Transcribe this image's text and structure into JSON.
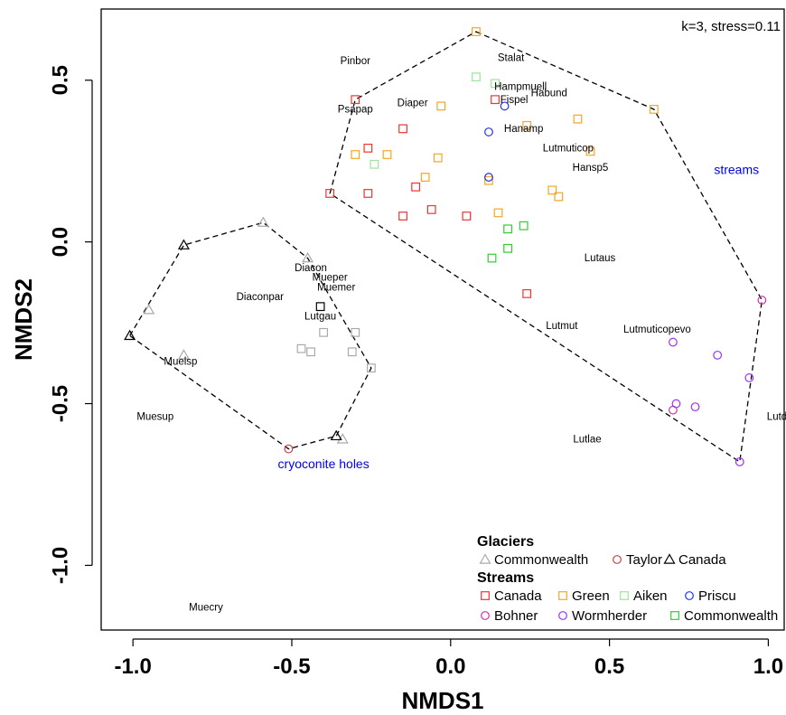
{
  "chart_data": {
    "type": "scatter",
    "xlabel": "NMDS1",
    "ylabel": "NMDS2",
    "xlim": [
      -1.1,
      1.05
    ],
    "ylim": [
      -1.2,
      0.72
    ],
    "xticks": [
      "-1.0",
      "-0.5",
      "0.0",
      "0.5",
      "1.0"
    ],
    "xtick_values": [
      -1.0,
      -0.5,
      0.0,
      0.5,
      1.0
    ],
    "yticks": [
      "-1.0",
      "-0.5",
      "0.0",
      "0.5"
    ],
    "ytick_values": [
      -1.0,
      -0.5,
      0.0,
      0.5
    ],
    "annotation": "k=3, stress=0.11",
    "group_labels": [
      {
        "text": "cryoconite holes",
        "x": -0.4,
        "y": -0.7,
        "color": "#0000ee"
      },
      {
        "text": "streams",
        "x": 0.9,
        "y": 0.21,
        "color": "#0000ee"
      }
    ],
    "hulls": [
      {
        "name": "cryoconite holes",
        "points": [
          [
            -1.01,
            -0.29
          ],
          [
            -0.84,
            -0.01
          ],
          [
            -0.59,
            0.06
          ],
          [
            -0.45,
            -0.05
          ],
          [
            -0.25,
            -0.39
          ],
          [
            -0.36,
            -0.6
          ],
          [
            -0.51,
            -0.64
          ]
        ]
      },
      {
        "name": "streams",
        "points": [
          [
            0.08,
            0.65
          ],
          [
            0.64,
            0.41
          ],
          [
            0.98,
            -0.18
          ],
          [
            0.91,
            -0.68
          ],
          [
            -0.38,
            0.15
          ],
          [
            -0.3,
            0.44
          ]
        ]
      }
    ],
    "species_labels": [
      {
        "text": "Pinbor",
        "x": -0.3,
        "y": 0.55
      },
      {
        "text": "Stalat",
        "x": 0.19,
        "y": 0.56
      },
      {
        "text": "Hampmuell",
        "x": 0.22,
        "y": 0.47
      },
      {
        "text": "Habund",
        "x": 0.31,
        "y": 0.45
      },
      {
        "text": "Fispel",
        "x": 0.2,
        "y": 0.43
      },
      {
        "text": "Psapap",
        "x": -0.3,
        "y": 0.4
      },
      {
        "text": "Diaper",
        "x": -0.12,
        "y": 0.42
      },
      {
        "text": "Hanamp",
        "x": 0.23,
        "y": 0.34
      },
      {
        "text": "Lutmuticop",
        "x": 0.37,
        "y": 0.28
      },
      {
        "text": "Hansp5",
        "x": 0.44,
        "y": 0.22
      },
      {
        "text": "Lutaus",
        "x": 0.47,
        "y": -0.06
      },
      {
        "text": "Diacon",
        "x": -0.44,
        "y": -0.09
      },
      {
        "text": "Mueper",
        "x": -0.38,
        "y": -0.12
      },
      {
        "text": "Muemer",
        "x": -0.36,
        "y": -0.15
      },
      {
        "text": "Diaconpar",
        "x": -0.6,
        "y": -0.18
      },
      {
        "text": "Lutgau",
        "x": -0.41,
        "y": -0.24
      },
      {
        "text": "Lutmut",
        "x": 0.35,
        "y": -0.27
      },
      {
        "text": "Lutmuticopevo",
        "x": 0.65,
        "y": -0.28
      },
      {
        "text": "Muelsp",
        "x": -0.85,
        "y": -0.38
      },
      {
        "text": "Muesup",
        "x": -0.93,
        "y": -0.55
      },
      {
        "text": "Lutdol",
        "x": 1.04,
        "y": -0.55
      },
      {
        "text": "Lutlae",
        "x": 0.43,
        "y": -0.62
      },
      {
        "text": "Muecry",
        "x": -0.77,
        "y": -1.14
      }
    ],
    "series": [
      {
        "name": "Commonwealth",
        "group": "Glaciers",
        "marker": "triangle",
        "color": "#aaaaaa",
        "points": [
          [
            -0.59,
            0.06
          ],
          [
            -0.95,
            -0.21
          ],
          [
            -0.84,
            -0.35
          ],
          [
            -0.45,
            -0.05
          ],
          [
            -0.34,
            -0.61
          ]
        ]
      },
      {
        "name": "Taylor",
        "group": "Glaciers",
        "marker": "circle",
        "color": "#c84040",
        "points": [
          [
            -0.51,
            -0.64
          ]
        ]
      },
      {
        "name": "Canada",
        "group": "Glaciers",
        "marker": "triangle",
        "color": "#000000",
        "points": [
          [
            -1.01,
            -0.29
          ],
          [
            -0.84,
            -0.01
          ],
          [
            -0.36,
            -0.6
          ]
        ]
      },
      {
        "name": "Canada",
        "group": "Streams",
        "marker": "square",
        "color": "#ee3333",
        "points": [
          [
            -0.3,
            0.44
          ],
          [
            0.14,
            0.44
          ],
          [
            -0.15,
            0.35
          ],
          [
            -0.26,
            0.29
          ],
          [
            -0.38,
            0.15
          ],
          [
            -0.26,
            0.15
          ],
          [
            -0.11,
            0.17
          ],
          [
            -0.06,
            0.1
          ],
          [
            -0.15,
            0.08
          ],
          [
            0.05,
            0.08
          ],
          [
            0.24,
            -0.16
          ]
        ]
      },
      {
        "name": "Green",
        "group": "Streams",
        "marker": "square",
        "color": "#f4a623",
        "points": [
          [
            0.08,
            0.65
          ],
          [
            0.64,
            0.41
          ],
          [
            -0.03,
            0.42
          ],
          [
            0.4,
            0.38
          ],
          [
            0.24,
            0.36
          ],
          [
            -0.3,
            0.27
          ],
          [
            -0.2,
            0.27
          ],
          [
            0.44,
            0.28
          ],
          [
            -0.04,
            0.26
          ],
          [
            -0.08,
            0.2
          ],
          [
            0.12,
            0.19
          ],
          [
            0.32,
            0.16
          ],
          [
            0.34,
            0.14
          ],
          [
            0.15,
            0.09
          ]
        ]
      },
      {
        "name": "Aiken",
        "group": "Streams",
        "marker": "square",
        "color": "#99e699",
        "points": [
          [
            0.08,
            0.51
          ],
          [
            0.14,
            0.49
          ],
          [
            -0.24,
            0.24
          ]
        ]
      },
      {
        "name": "Priscu",
        "group": "Streams",
        "marker": "circle",
        "color": "#2233dd",
        "points": [
          [
            0.17,
            0.42
          ],
          [
            0.12,
            0.34
          ],
          [
            0.12,
            0.2
          ]
        ]
      },
      {
        "name": "Bohner",
        "group": "Streams",
        "marker": "circle",
        "color": "#cc33aa",
        "points": [
          [
            0.98,
            -0.18
          ],
          [
            0.7,
            -0.52
          ]
        ]
      },
      {
        "name": "Wormherder",
        "group": "Streams",
        "marker": "circle",
        "color": "#9933ee",
        "points": [
          [
            0.7,
            -0.31
          ],
          [
            0.84,
            -0.35
          ],
          [
            0.94,
            -0.42
          ],
          [
            0.71,
            -0.5
          ],
          [
            0.77,
            -0.51
          ],
          [
            0.91,
            -0.68
          ]
        ]
      },
      {
        "name": "Commonwealth",
        "group": "Streams",
        "marker": "square",
        "color": "#33cc33",
        "points": [
          [
            0.18,
            0.04
          ],
          [
            0.23,
            0.05
          ],
          [
            0.18,
            -0.02
          ],
          [
            0.13,
            -0.05
          ]
        ]
      }
    ],
    "legend": {
      "placement": "bottom-right",
      "glaciers_heading": "Glaciers",
      "streams_heading": "Streams",
      "glaciers": [
        {
          "label": "Commonwealth",
          "marker": "triangle",
          "color": "#aaaaaa"
        },
        {
          "label": "Taylor",
          "marker": "circle",
          "color": "#c84040"
        },
        {
          "label": "Canada",
          "marker": "triangle",
          "color": "#000000"
        }
      ],
      "streams_row1": [
        {
          "label": "Canada",
          "marker": "square",
          "color": "#ee3333"
        },
        {
          "label": "Green",
          "marker": "square",
          "color": "#f4a623"
        },
        {
          "label": "Aiken",
          "marker": "square",
          "color": "#99e699"
        },
        {
          "label": "Priscu",
          "marker": "circle",
          "color": "#2233dd"
        }
      ],
      "streams_row2": [
        {
          "label": "Bohner",
          "marker": "circle",
          "color": "#cc33aa"
        },
        {
          "label": "Wormherder",
          "marker": "circle",
          "color": "#9933ee"
        },
        {
          "label": "Commonwealth",
          "marker": "square",
          "color": "#33cc33"
        }
      ]
    },
    "extra_gray_squares": [
      [
        -0.47,
        -0.33
      ],
      [
        -0.44,
        -0.34
      ],
      [
        -0.31,
        -0.34
      ],
      [
        -0.3,
        -0.28
      ],
      [
        -0.25,
        -0.39
      ],
      [
        -0.4,
        -0.28
      ]
    ],
    "extra_black_squares": [
      [
        -0.41,
        -0.2
      ]
    ],
    "grid": false
  }
}
